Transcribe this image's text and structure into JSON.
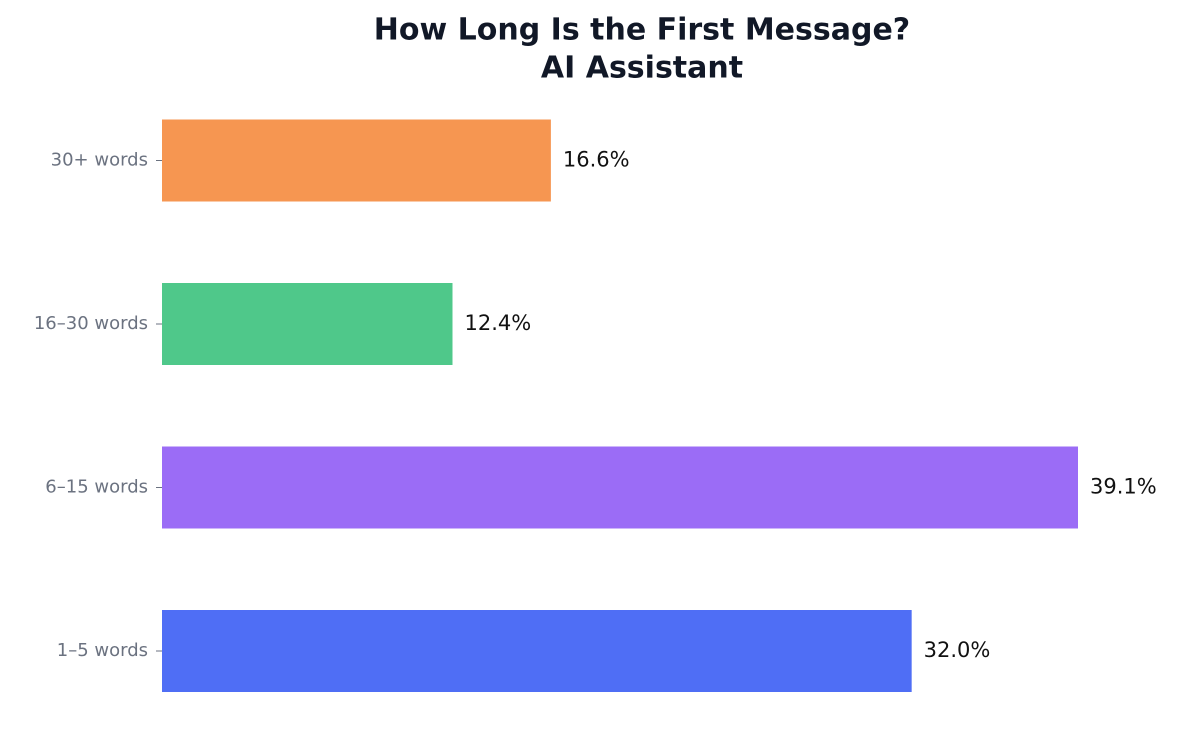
{
  "chart_data": {
    "type": "barh",
    "title": "How Long Is the First Message?",
    "subtitle": "AI Assistant",
    "categories": [
      "1–5 words",
      "6–15 words",
      "16–30 words",
      "30+ words"
    ],
    "values": [
      32.0,
      39.1,
      12.4,
      16.6
    ],
    "value_labels": [
      "32.0%",
      "39.1%",
      "12.4%",
      "16.6%"
    ],
    "colors": [
      "#4f6ef5",
      "#9b6cf6",
      "#4fc88a",
      "#f69651"
    ]
  }
}
